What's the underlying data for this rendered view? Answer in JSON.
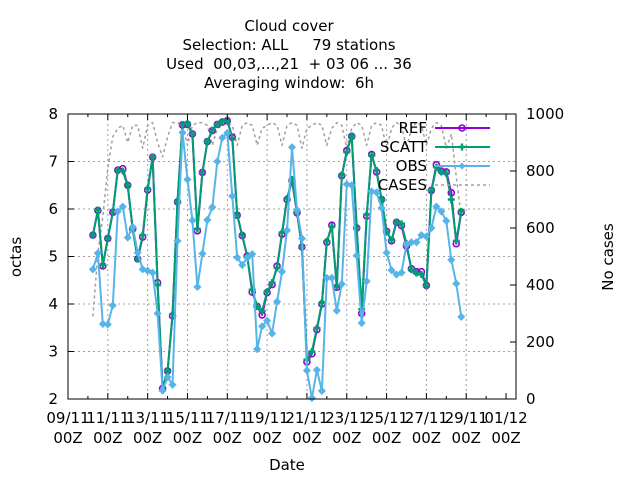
{
  "title_lines": [
    "Cloud cover",
    "Selection: ALL     79 stations",
    "Used  00,03,...,21  + 03 06 ... 36",
    "Averaging window:  6h"
  ],
  "colors": {
    "REF": "#9400d3",
    "SCATT": "#009e73",
    "OBS": "#56b4e9",
    "CASES": "#a0a0a0",
    "grid": "#a0a0a0"
  },
  "chart_data": {
    "type": "line",
    "title": "Cloud cover\nSelection: ALL     79 stations\nUsed  00,03,...,21  + 03 06 ... 36\nAveraging window:  6h",
    "xlabel": "Date",
    "ylabel": "octas",
    "y2label": "No cases",
    "xlim": [
      "2009-11-09 00:00",
      "2009-12-01 12:00"
    ],
    "ylim": [
      2,
      8
    ],
    "y2lim": [
      0,
      1000
    ],
    "xticks": [
      "09/11\n00Z",
      "11/11\n00Z",
      "13/11\n00Z",
      "15/11\n00Z",
      "17/11\n00Z",
      "19/11\n00Z",
      "21/11\n00Z",
      "23/11\n00Z",
      "25/11\n00Z",
      "27/11\n00Z",
      "29/11\n00Z",
      "01/12\n00Z"
    ],
    "yticks": [
      2,
      3,
      4,
      5,
      6,
      7,
      8
    ],
    "y2ticks": [
      0,
      200,
      400,
      600,
      800,
      1000
    ],
    "grid": true,
    "legend_position": "top-right",
    "x_start": "2009-11-10 06:00",
    "x_step_hours": 6,
    "series": [
      {
        "name": "REF",
        "axis": "y",
        "values": [
          5.45,
          5.97,
          4.8,
          5.38,
          5.93,
          6.82,
          6.85,
          6.5,
          5.58,
          4.95,
          5.41,
          6.4,
          7.09,
          4.45,
          2.22,
          2.59,
          3.75,
          6.15,
          7.77,
          7.78,
          7.58,
          5.54,
          6.77,
          7.42,
          7.65,
          7.78,
          7.83,
          7.86,
          7.51,
          5.87,
          5.44,
          5.01,
          4.25,
          3.95,
          3.77,
          4.24,
          4.41,
          4.8,
          5.47,
          6.2,
          6.6,
          5.92,
          5.2,
          2.78,
          2.95,
          3.46,
          4.0,
          5.3,
          5.66,
          4.35,
          6.7,
          7.23,
          7.53,
          5.6,
          3.8,
          5.85,
          7.15,
          6.78,
          6.2,
          5.53,
          5.33,
          5.72,
          5.65,
          5.22,
          4.74,
          4.68,
          4.68,
          4.39,
          6.39,
          6.93,
          6.8,
          6.78,
          6.34,
          5.27,
          5.93
        ]
      },
      {
        "name": "SCATT",
        "axis": "y",
        "values": [
          5.45,
          5.98,
          4.82,
          5.38,
          5.93,
          6.82,
          6.8,
          6.49,
          5.58,
          4.95,
          5.45,
          6.43,
          7.09,
          4.4,
          2.18,
          2.59,
          3.78,
          6.16,
          7.78,
          7.8,
          7.58,
          5.58,
          6.77,
          7.42,
          7.66,
          7.78,
          7.84,
          7.87,
          7.49,
          5.88,
          5.45,
          5.0,
          4.3,
          3.95,
          3.85,
          4.26,
          4.45,
          4.76,
          5.5,
          6.22,
          6.62,
          5.93,
          5.2,
          2.83,
          3.0,
          3.49,
          4.02,
          5.32,
          5.63,
          4.36,
          6.71,
          7.2,
          7.54,
          5.61,
          3.89,
          5.88,
          7.13,
          6.81,
          6.2,
          5.52,
          5.35,
          5.73,
          5.69,
          5.27,
          4.72,
          4.65,
          4.62,
          4.38,
          6.38,
          6.88,
          6.78,
          6.75,
          6.2,
          5.33,
          5.95
        ]
      },
      {
        "name": "OBS",
        "axis": "y",
        "values": [
          4.73,
          5.07,
          3.58,
          3.57,
          3.97,
          5.95,
          6.05,
          5.4,
          5.62,
          5.08,
          4.73,
          4.7,
          4.66,
          3.8,
          2.18,
          2.46,
          2.3,
          5.33,
          7.61,
          6.62,
          5.76,
          4.36,
          5.06,
          5.77,
          6.04,
          7.0,
          7.5,
          7.6,
          6.27,
          4.98,
          4.82,
          4.97,
          5.05,
          3.05,
          3.53,
          3.65,
          3.38,
          4.05,
          4.68,
          5.55,
          7.3,
          5.98,
          5.38,
          2.6,
          2.02,
          2.61,
          2.17,
          4.55,
          4.55,
          3.86,
          4.42,
          6.52,
          6.5,
          5.02,
          3.6,
          4.48,
          6.37,
          6.35,
          6.02,
          5.08,
          4.71,
          4.62,
          4.66,
          5.25,
          5.3,
          5.3,
          5.45,
          5.42,
          5.6,
          6.05,
          5.95,
          5.75,
          4.93,
          4.43,
          3.73
        ]
      },
      {
        "name": "CASES",
        "axis": "y2",
        "style": "dashed",
        "values": [
          290,
          510,
          640,
          810,
          920,
          950,
          960,
          900,
          960,
          960,
          880,
          960,
          970,
          900,
          850,
          920,
          970,
          970,
          960,
          890,
          960,
          970,
          970,
          960,
          890,
          950,
          960,
          970,
          960,
          890,
          960,
          970,
          960,
          890,
          950,
          960,
          970,
          960,
          890,
          960,
          970,
          960,
          880,
          950,
          960,
          970,
          960,
          890,
          950,
          970,
          960,
          880,
          950,
          970,
          960,
          890,
          960,
          970,
          960,
          880,
          950,
          970,
          960,
          880,
          950,
          970,
          960,
          890,
          950,
          970,
          960,
          880,
          930,
          780,
          640
        ]
      }
    ]
  }
}
